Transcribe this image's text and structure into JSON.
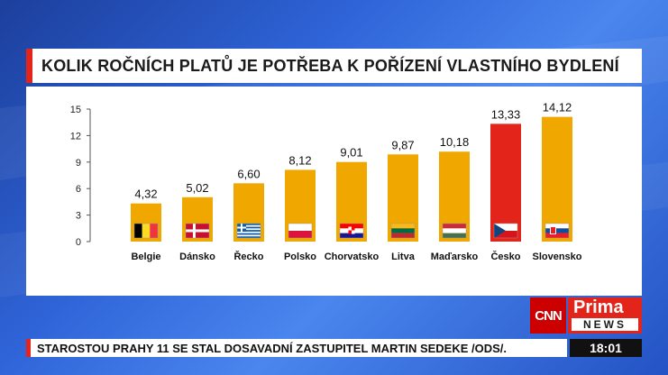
{
  "header": {
    "title": "KOLIK ROČNÍCH PLATŮ JE POTŘEBA K POŘÍZENÍ VLASTNÍHO BYDLENÍ"
  },
  "chart_data": {
    "type": "bar",
    "title": "KOLIK ROČNÍCH PLATŮ JE POTŘEBA K POŘÍZENÍ VLASTNÍHO BYDLENÍ",
    "categories": [
      "Belgie",
      "Dánsko",
      "Řecko",
      "Polsko",
      "Chorvatsko",
      "Litva",
      "Maďarsko",
      "Česko",
      "Slovensko"
    ],
    "values": [
      4.32,
      5.02,
      6.6,
      8.12,
      9.01,
      9.87,
      10.18,
      13.33,
      14.12
    ],
    "value_labels": [
      "4,32",
      "5,02",
      "6,60",
      "8,12",
      "9,01",
      "9,87",
      "10,18",
      "13,33",
      "14,12"
    ],
    "ylim": [
      0,
      15
    ],
    "yticks": [
      0,
      3,
      6,
      9,
      12,
      15
    ],
    "grid": false,
    "legend": "none",
    "bar_color": "#f0a800",
    "highlight_color": "#e2241b",
    "highlight_index": 7,
    "flags": [
      "belgium-flag-icon",
      "denmark-flag-icon",
      "greece-flag-icon",
      "poland-flag-icon",
      "croatia-flag-icon",
      "lithuania-flag-icon",
      "hungary-flag-icon",
      "czechia-flag-icon",
      "slovakia-flag-icon"
    ]
  },
  "branding": {
    "cnn": "CNN",
    "prima": "Prima",
    "news": "NEWS"
  },
  "ticker": {
    "text": "STAROSTOU PRAHY 11 SE STAL DOSAVADNÍ ZASTUPITEL MARTIN SEDEKE /ODS/."
  },
  "clock": {
    "time": "18:01"
  }
}
